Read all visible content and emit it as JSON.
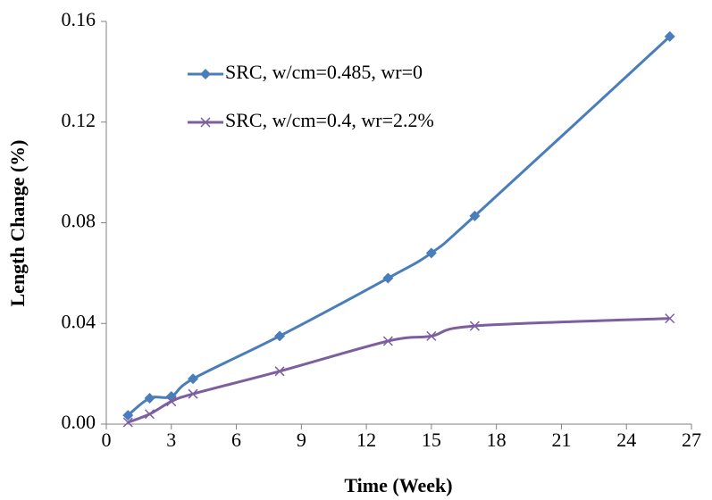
{
  "chart_data": {
    "type": "line",
    "x_label": "Time (Week)",
    "y_label": "Length Change (%)",
    "x": [
      1,
      2,
      3,
      4,
      8,
      13,
      15,
      17,
      26
    ],
    "series": [
      {
        "name": "SRC, w/cm=0.485, wr=0",
        "color": "#4a7ebb",
        "marker": "diamond",
        "values": [
          0.0035,
          0.0103,
          0.011,
          0.018,
          0.035,
          0.058,
          0.068,
          0.0827,
          0.154
        ]
      },
      {
        "name": "SRC, w/cm=0.4, wr=2.2%",
        "color": "#7d5fa0",
        "marker": "x",
        "values": [
          0.0007,
          0.004,
          0.009,
          0.012,
          0.021,
          0.033,
          0.035,
          0.039,
          0.042
        ]
      }
    ],
    "xlim": [
      0,
      27
    ],
    "xticks": [
      0,
      3,
      6,
      9,
      12,
      15,
      18,
      21,
      24,
      27
    ],
    "ylim": [
      0,
      0.16
    ],
    "yticks": [
      {
        "value": 0,
        "label": "0.00"
      },
      0.04,
      0.08,
      0.12,
      0.16
    ],
    "grid": false,
    "legend": "top-left"
  }
}
